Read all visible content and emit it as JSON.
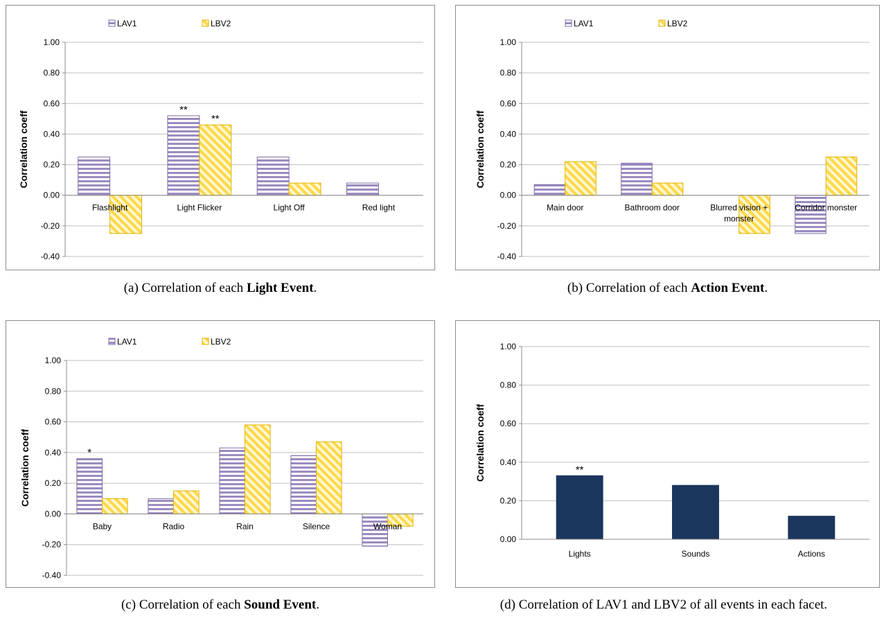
{
  "colors": {
    "lav1_stripe": "#9b8bbf",
    "lav1_bg": "#ffffff",
    "lav1_border": "#7d6aa8",
    "lbv2_stripe": "#ffd84a",
    "lbv2_bg": "#fff7d0",
    "lbv2_border": "#e0b200",
    "navy": "#1b365d",
    "grid": "#bfbfbf",
    "axis": "#8c8c8c"
  },
  "captions": {
    "a": {
      "prefix": "(a) Correlation of each ",
      "bold": "Light Event",
      "suffix": "."
    },
    "b": {
      "prefix": "(b) Correlation of each ",
      "bold": "Action Event",
      "suffix": "."
    },
    "c": {
      "prefix": "(c) Correlation of each ",
      "bold": "Sound Event",
      "suffix": "."
    },
    "d": {
      "prefix": "(d) Correlation of LAV1 and LBV2 of all events in each facet.",
      "bold": "",
      "suffix": ""
    }
  },
  "chart_data": [
    {
      "id": "a",
      "type": "bar",
      "ylabel": "Correlation coeff",
      "ylim": [
        -0.4,
        1.0
      ],
      "yticks": [
        "1.00",
        "0.80",
        "0.60",
        "0.40",
        "0.20",
        "0.00",
        "-0.20",
        "-0.40"
      ],
      "grid": true,
      "legend": "top-left",
      "categories": [
        "Flashlight",
        "Light Flicker",
        "Light Off",
        "Red light"
      ],
      "series": [
        {
          "name": "LAV1",
          "values": [
            0.25,
            0.52,
            0.25,
            0.08
          ],
          "annotations": [
            "",
            "**",
            "",
            ""
          ]
        },
        {
          "name": "LBV2",
          "values": [
            -0.25,
            0.46,
            0.08,
            null
          ],
          "annotations": [
            "",
            "**",
            "",
            ""
          ]
        }
      ]
    },
    {
      "id": "b",
      "type": "bar",
      "ylabel": "Correlation coeff",
      "ylim": [
        -0.4,
        1.0
      ],
      "yticks": [
        "1.00",
        "0.80",
        "0.60",
        "0.40",
        "0.20",
        "0.00",
        "-0.20",
        "-0.40"
      ],
      "grid": true,
      "legend": "top-left",
      "categories": [
        "Main door",
        "Bathroom door",
        "Blurred vision + monster",
        "Corridor monster"
      ],
      "series": [
        {
          "name": "LAV1",
          "values": [
            0.07,
            0.21,
            null,
            -0.25
          ],
          "annotations": [
            "",
            "",
            "",
            ""
          ]
        },
        {
          "name": "LBV2",
          "values": [
            0.22,
            0.08,
            -0.25,
            0.25
          ],
          "annotations": [
            "",
            "",
            "",
            ""
          ]
        }
      ]
    },
    {
      "id": "c",
      "type": "bar",
      "ylabel": "Correlation coeff",
      "ylim": [
        -0.4,
        1.0
      ],
      "yticks": [
        "1.00",
        "0.80",
        "0.60",
        "0.40",
        "0.20",
        "0.00",
        "-0.20",
        "-0.40"
      ],
      "grid": true,
      "legend": "top-left",
      "categories": [
        "Baby",
        "Radio",
        "Rain",
        "Silence",
        "Woman"
      ],
      "series": [
        {
          "name": "LAV1",
          "values": [
            0.36,
            0.1,
            0.43,
            0.38,
            -0.21
          ],
          "annotations": [
            "*",
            "",
            "",
            "",
            ""
          ]
        },
        {
          "name": "LBV2",
          "values": [
            0.1,
            0.15,
            0.58,
            0.47,
            -0.08
          ],
          "annotations": [
            "",
            "",
            "",
            "",
            ""
          ]
        }
      ]
    },
    {
      "id": "d",
      "type": "bar",
      "ylabel": "Correlation coeff",
      "ylim": [
        0.0,
        1.0
      ],
      "yticks": [
        "1.00",
        "0.80",
        "0.60",
        "0.40",
        "0.20",
        "0.00"
      ],
      "grid": true,
      "legend": "none",
      "categories": [
        "Lights",
        "Sounds",
        "Actions"
      ],
      "series": [
        {
          "values": [
            0.33,
            0.28,
            0.12
          ],
          "annotations": [
            "**",
            "",
            ""
          ]
        }
      ]
    }
  ]
}
